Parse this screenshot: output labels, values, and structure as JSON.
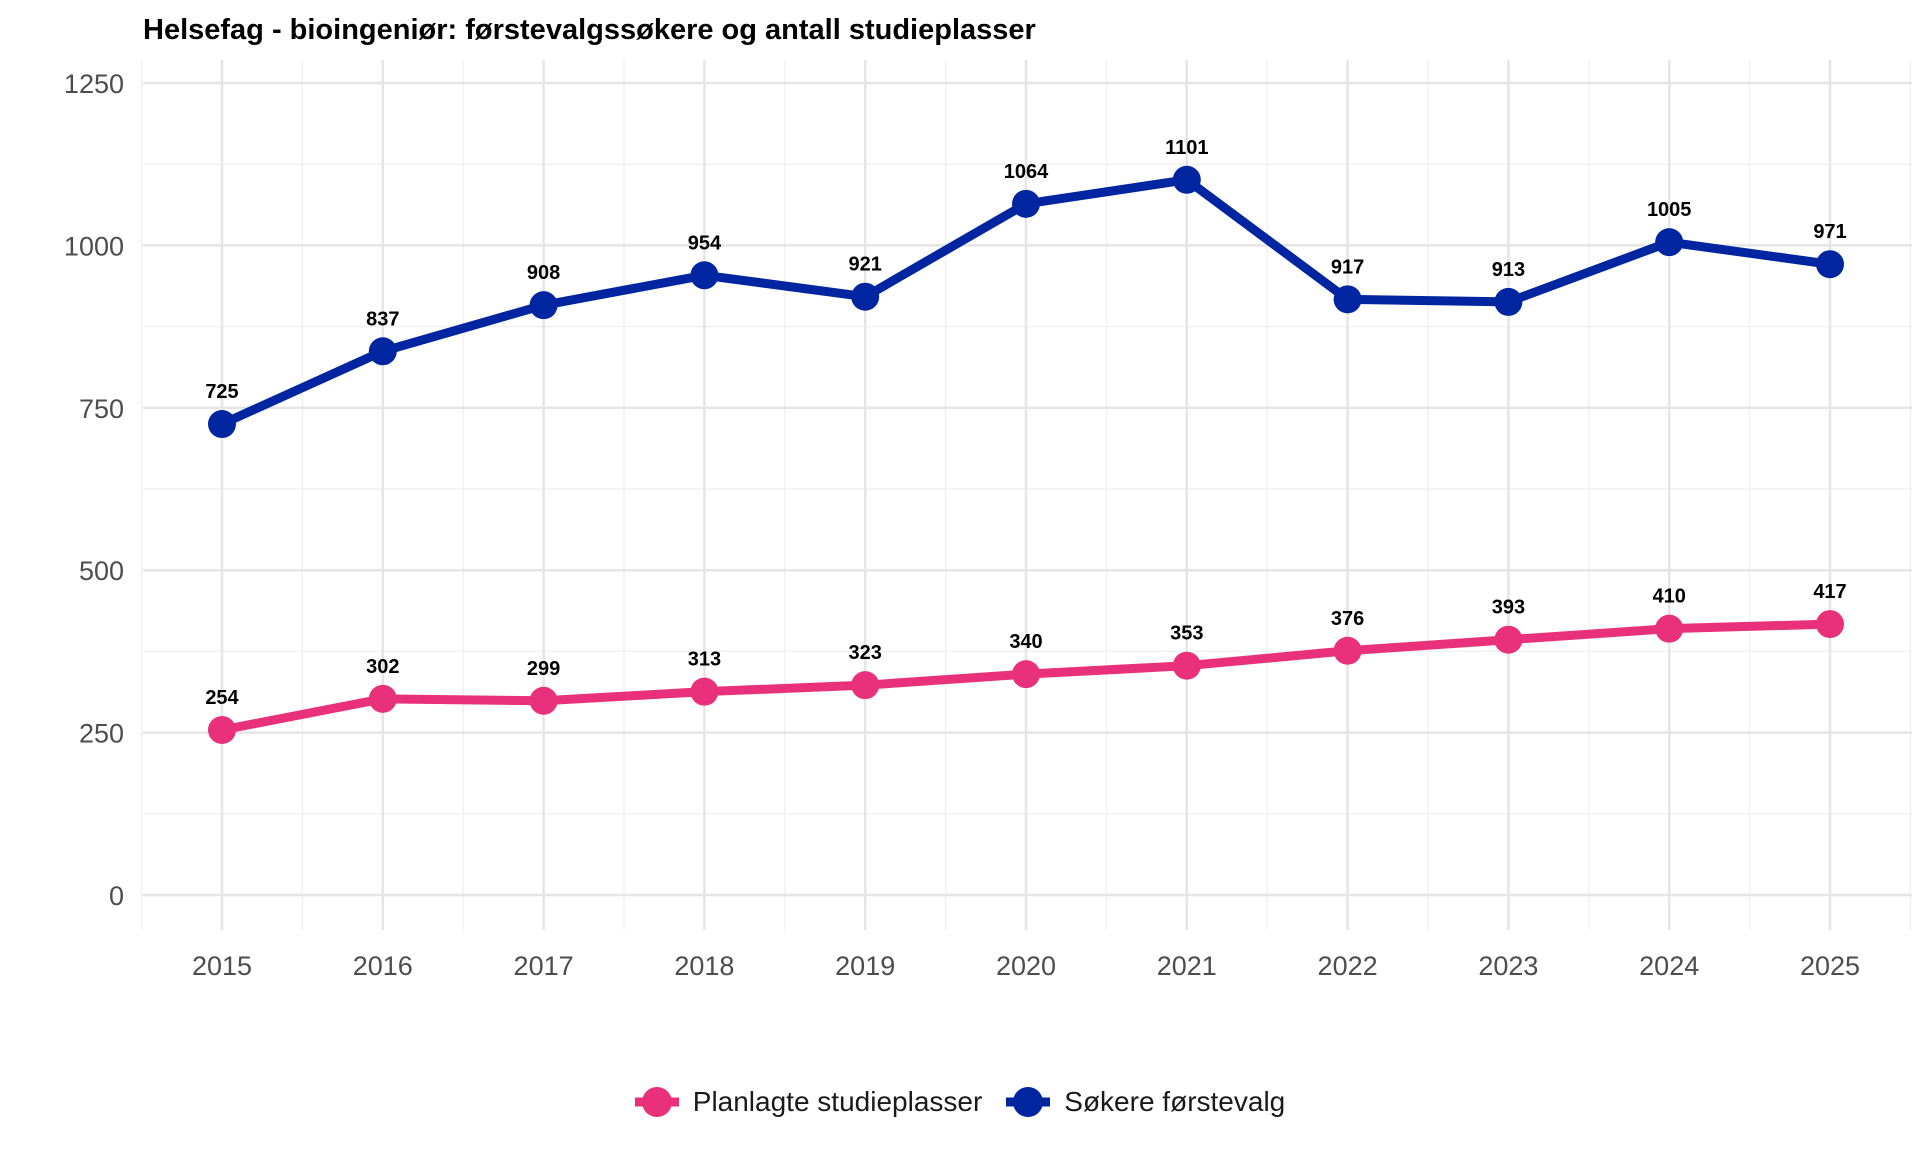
{
  "chart_data": {
    "type": "line",
    "title": "Helsefag - bioingeniør: førstevalgssøkere og antall studieplasser",
    "xlabel": "",
    "ylabel": "",
    "x": [
      "2015",
      "2016",
      "2017",
      "2018",
      "2019",
      "2020",
      "2021",
      "2022",
      "2023",
      "2024",
      "2025"
    ],
    "ylim": [
      0,
      1250
    ],
    "yticks": [
      0,
      250,
      500,
      750,
      1000,
      1250
    ],
    "grid": true,
    "legend_position": "bottom",
    "series": [
      {
        "name": "Søkere førstevalg",
        "color": "#0025A0",
        "values": [
          725,
          837,
          908,
          954,
          921,
          1064,
          1101,
          917,
          913,
          1005,
          971
        ]
      },
      {
        "name": "Planlagte studieplasser",
        "color": "#E8317A",
        "values": [
          254,
          302,
          299,
          313,
          323,
          340,
          353,
          376,
          393,
          410,
          417
        ]
      }
    ],
    "legend": [
      {
        "name": "Planlagte studieplasser",
        "color": "#E8317A"
      },
      {
        "name": "Søkere førstevalg",
        "color": "#0025A0"
      }
    ]
  }
}
